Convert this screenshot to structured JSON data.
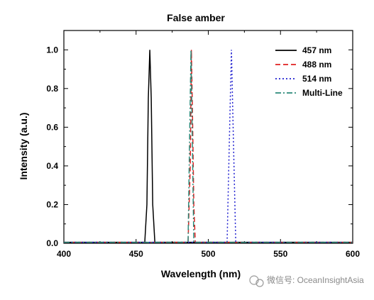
{
  "chart_data": {
    "type": "line",
    "title": "False amber",
    "xlabel": "Wavelength (nm)",
    "ylabel": "Intensity (a.u.)",
    "xlim": [
      400,
      600
    ],
    "ylim": [
      0,
      1.1
    ],
    "xticks": [
      400,
      450,
      500,
      550,
      600
    ],
    "yticks": [
      0.0,
      0.2,
      0.4,
      0.6,
      0.8,
      1.0
    ],
    "ytick_labels": [
      "0.0",
      "0.2",
      "0.4",
      "0.6",
      "0.8",
      "1.0"
    ],
    "legend_position": "top-right",
    "grid": false,
    "series": [
      {
        "name": "457 nm",
        "color": "#000000",
        "dash": "solid",
        "x": [
          400,
          456,
          457.5,
          458.5,
          459.5,
          460.5,
          461.5,
          463,
          600
        ],
        "y": [
          0.005,
          0.005,
          0.2,
          0.75,
          1.0,
          0.75,
          0.2,
          0.005,
          0.005
        ]
      },
      {
        "name": "488 nm",
        "color": "#e02020",
        "dash": "dashed",
        "x": [
          400,
          486,
          487.5,
          488.3,
          489,
          490,
          491,
          600
        ],
        "y": [
          0.005,
          0.005,
          0.4,
          1.0,
          0.7,
          0.2,
          0.005,
          0.005
        ]
      },
      {
        "name": "514 nm",
        "color": "#2020d0",
        "dash": "dotted",
        "x": [
          400,
          513,
          514.5,
          516,
          517.5,
          519,
          600
        ],
        "y": [
          0.005,
          0.005,
          0.5,
          1.0,
          0.5,
          0.005,
          0.005
        ]
      },
      {
        "name": "Multi-Line",
        "color": "#2a8a7a",
        "dash": "dashdot",
        "x": [
          400,
          486,
          487,
          488,
          489,
          490,
          600
        ],
        "y": [
          0.005,
          0.005,
          0.5,
          1.0,
          0.5,
          0.005,
          0.005
        ]
      }
    ]
  },
  "watermark": {
    "text": "微信号: OceanInsightAsia"
  }
}
